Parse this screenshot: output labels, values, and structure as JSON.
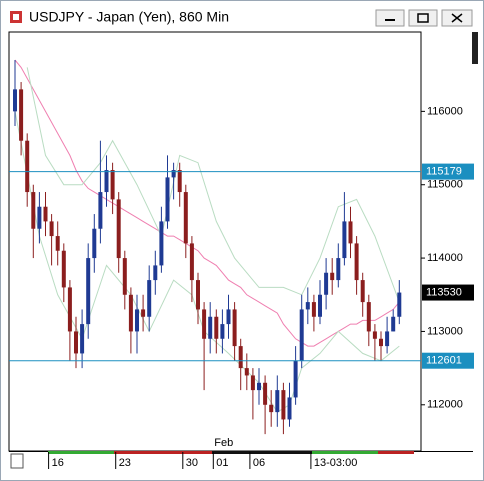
{
  "chart_data": {
    "type": "candlestick",
    "title": "USDJPY - Japan (Yen), 860 Min",
    "categories": [
      null,
      null,
      null,
      null,
      null,
      null,
      "16",
      null,
      null,
      null,
      null,
      null,
      null,
      null,
      null,
      null,
      null,
      "23",
      null,
      null,
      null,
      null,
      null,
      null,
      null,
      null,
      null,
      null,
      "30",
      null,
      null,
      null,
      null,
      "01",
      null,
      null,
      null,
      null,
      null,
      "06",
      null,
      null,
      null,
      null,
      null,
      null,
      null,
      null,
      null,
      "13-03:00",
      null,
      null,
      null,
      null,
      null,
      null,
      null,
      null,
      null,
      null,
      null,
      null,
      null,
      null
    ],
    "x_annotation": {
      "text": "Feb",
      "at": 33
    },
    "open": [
      116000,
      116300,
      115600,
      114900,
      114400,
      114700,
      114500,
      114300,
      114100,
      113600,
      113000,
      112700,
      113100,
      114000,
      114400,
      114900,
      115200,
      114800,
      114000,
      113500,
      113000,
      113300,
      113200,
      113700,
      113900,
      114500,
      115100,
      115200,
      114900,
      114200,
      113700,
      113300,
      112900,
      113200,
      112900,
      113100,
      113300,
      112800,
      112500,
      112400,
      112200,
      112300,
      112000,
      111900,
      112200,
      111800,
      112100,
      112600,
      113300,
      113400,
      113200,
      113500,
      113800,
      113700,
      114000,
      114500,
      114200,
      113700,
      113400,
      113000,
      112900,
      112800,
      113000,
      113200
    ],
    "high": [
      116700,
      116400,
      115700,
      115000,
      114900,
      114900,
      114600,
      114500,
      114200,
      113700,
      113200,
      113300,
      114200,
      114600,
      115600,
      115400,
      115300,
      114900,
      114100,
      113600,
      113500,
      113500,
      113900,
      114100,
      114700,
      115400,
      115300,
      115300,
      115000,
      114300,
      113800,
      113400,
      113400,
      113300,
      113300,
      113500,
      113400,
      112900,
      112700,
      112500,
      112500,
      112400,
      112200,
      112400,
      112300,
      112300,
      112800,
      113500,
      113600,
      113500,
      113700,
      114000,
      114000,
      114200,
      114900,
      114700,
      114300,
      113800,
      113500,
      113100,
      113000,
      113200,
      113300,
      113700
    ],
    "low": [
      115800,
      115400,
      114700,
      114000,
      114200,
      114300,
      113900,
      113900,
      113400,
      112600,
      112500,
      112500,
      112900,
      113800,
      114200,
      114700,
      114600,
      113800,
      113300,
      112700,
      112700,
      113000,
      113000,
      113500,
      113800,
      114400,
      114800,
      114700,
      114000,
      113400,
      113100,
      112200,
      112700,
      112700,
      112700,
      112900,
      112600,
      112200,
      112200,
      111800,
      112000,
      111600,
      111700,
      111700,
      111600,
      111700,
      112000,
      112500,
      113100,
      113000,
      113100,
      113300,
      113500,
      113600,
      113900,
      114000,
      113500,
      113200,
      112800,
      112600,
      112600,
      112700,
      113000,
      113100
    ],
    "close": [
      116300,
      115600,
      114900,
      114400,
      114700,
      114500,
      114300,
      114100,
      113600,
      113000,
      112700,
      113100,
      114000,
      114400,
      114900,
      115200,
      114800,
      114000,
      113500,
      113000,
      113300,
      113200,
      113700,
      113900,
      114500,
      115100,
      115200,
      114900,
      114200,
      113700,
      113300,
      112900,
      113200,
      112900,
      113100,
      113300,
      112800,
      112500,
      112400,
      112200,
      112300,
      112000,
      111900,
      112200,
      111800,
      112100,
      112600,
      113300,
      113400,
      113200,
      113500,
      113800,
      113700,
      114000,
      114500,
      114200,
      113700,
      113400,
      113000,
      112900,
      112800,
      113000,
      113200,
      113530
    ],
    "up_color": "#1f3a93",
    "down_color": "#8b1e1e",
    "lines": [
      {
        "color": "#ef7fb0",
        "values": [
          116700,
          116600,
          116450,
          116300,
          116150,
          116000,
          115850,
          115700,
          115550,
          115400,
          115200,
          115050,
          114950,
          114900,
          114850,
          114800,
          114750,
          114700,
          114650,
          114600,
          114550,
          114500,
          114450,
          114400,
          114350,
          114300,
          114300,
          114250,
          114200,
          114150,
          114100,
          114000,
          113950,
          113900,
          113800,
          113700,
          113650,
          113600,
          113500,
          113450,
          113400,
          113350,
          113300,
          113250,
          113100,
          113000,
          112900,
          112850,
          112800,
          112800,
          112850,
          112900,
          112950,
          113000,
          113050,
          113100,
          113100,
          113150,
          113150,
          113150,
          113200,
          113250,
          113300,
          113400
        ]
      },
      {
        "color": "#b9dcc2",
        "x": [
          2,
          5,
          8,
          11,
          14,
          16,
          20,
          24,
          27,
          30,
          33,
          36,
          40,
          44,
          47,
          50,
          53,
          56,
          59,
          63
        ],
        "values": [
          116600,
          115400,
          115000,
          115000,
          115300,
          115600,
          115000,
          114300,
          115400,
          115300,
          114500,
          114000,
          113600,
          113600,
          113500,
          114000,
          114700,
          114800,
          114300,
          113400
        ]
      },
      {
        "color": "#b9dcc2",
        "x": [
          0,
          4,
          7,
          11,
          15,
          19,
          22,
          26,
          29,
          31,
          35,
          40,
          43,
          45,
          47,
          50,
          53,
          57,
          60,
          63
        ],
        "values": [
          116000,
          114300,
          113500,
          112900,
          113900,
          113500,
          113000,
          113700,
          113500,
          113000,
          112700,
          112300,
          111900,
          112000,
          112500,
          112700,
          113000,
          112700,
          112600,
          112800
        ]
      }
    ],
    "hlines": [
      {
        "value": 115179,
        "color": "#1b8fc0"
      },
      {
        "value": 112601,
        "color": "#1b8fc0"
      }
    ],
    "last_price": 113530,
    "ylim": [
      111370,
      117082
    ],
    "yticks": [
      112000,
      113000,
      114000,
      115000,
      116000
    ]
  }
}
